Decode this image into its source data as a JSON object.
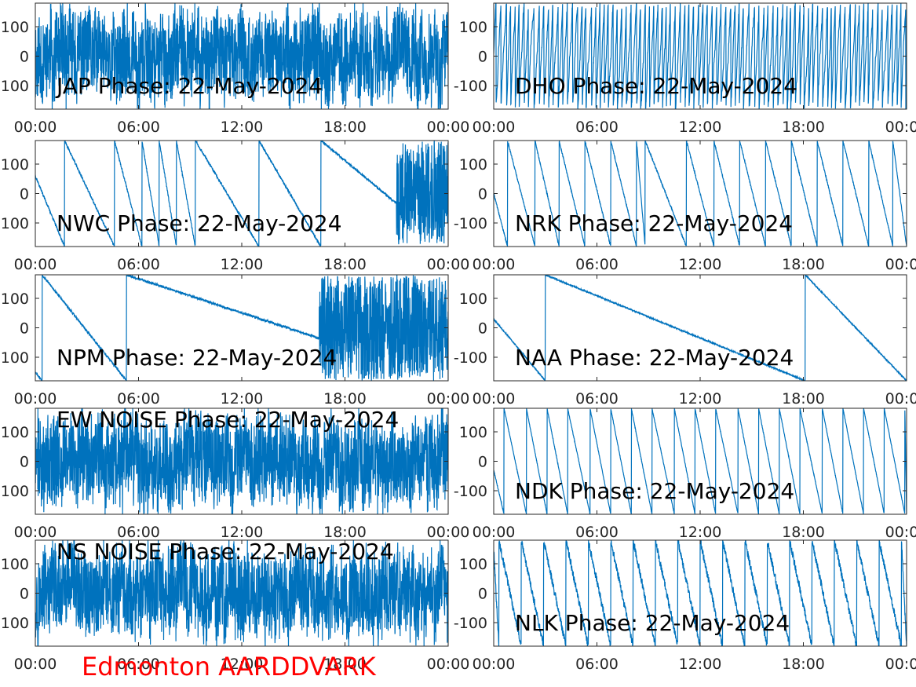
{
  "station_label": "Edmonton AARDDVARK",
  "colors": {
    "trace": "#0072bd",
    "axes": "#262626",
    "station": "#ff0000"
  },
  "chart_data": [
    {
      "type": "line",
      "title": "JAP Phase: 22-May-2024",
      "kind": "noise",
      "amp": 170,
      "seed": 11,
      "ylim": [
        -180,
        180
      ],
      "yticks": [
        "100",
        "0",
        "-100"
      ],
      "xticks": [
        "00:00",
        "06:00",
        "12:00",
        "18:00",
        "00:00"
      ],
      "xlim_hours": [
        0,
        24
      ]
    },
    {
      "type": "line",
      "title": "DHO Phase: 22-May-2024",
      "kind": "dense_wrap",
      "cycles": 90,
      "seed": 23,
      "ylim": [
        -180,
        180
      ],
      "yticks": [
        "100",
        "0",
        "-100"
      ],
      "xticks": [
        "00:00",
        "06:00",
        "12:00",
        "18:00",
        "00:00"
      ],
      "xlim_hours": [
        0,
        24
      ]
    },
    {
      "type": "line",
      "title": "NWC Phase: 22-May-2024",
      "kind": "wraps",
      "start": 60,
      "wraps_at_hours": [
        1.7,
        4.6,
        6.2,
        7.2,
        8.2,
        9.3,
        13.0,
        16.6
      ],
      "jitter": 4,
      "noisy_from_hours": 21.0,
      "seed": 37,
      "ylim": [
        -180,
        180
      ],
      "yticks": [
        "100",
        "0",
        "-100"
      ],
      "xticks": [
        "00:00",
        "06:00",
        "12:00",
        "18:00",
        "00:00"
      ],
      "xlim_hours": [
        0,
        24
      ]
    },
    {
      "type": "line",
      "title": "NRK Phase: 22-May-2024",
      "kind": "wraps",
      "start": 0,
      "wraps_at_hours": [
        0.8,
        2.4,
        3.8,
        5.3,
        6.8,
        8.3,
        8.8,
        11.2,
        12.8,
        14.3,
        15.8,
        17.3,
        18.8,
        20.3,
        21.8,
        23.2
      ],
      "jitter": 3,
      "seed": 41,
      "ylim": [
        -180,
        180
      ],
      "yticks": [
        "100",
        "0",
        "-100"
      ],
      "xticks": [
        "00:00",
        "06:00",
        "12:00",
        "18:00",
        "00:00"
      ],
      "xlim_hours": [
        0,
        24
      ]
    },
    {
      "type": "line",
      "title": "NPM Phase: 22-May-2024",
      "kind": "wraps",
      "start": -150,
      "wraps_at_hours": [
        0.4,
        5.3
      ],
      "jitter": 4,
      "noisy_from_hours": 16.5,
      "seed": 53,
      "ylim": [
        -180,
        180
      ],
      "yticks": [
        "100",
        "0",
        "-100"
      ],
      "xticks": [
        "00:00",
        "06:00",
        "12:00",
        "18:00",
        "00:00"
      ],
      "xlim_hours": [
        0,
        24
      ]
    },
    {
      "type": "line",
      "title": "NAA Phase: 22-May-2024",
      "kind": "wraps",
      "start": 30,
      "wraps_at_hours": [
        3.0,
        18.1
      ],
      "jitter": 2,
      "seed": 67,
      "ylim": [
        -180,
        180
      ],
      "yticks": [
        "100",
        "0",
        "-100"
      ],
      "xticks": [
        "00:00",
        "06:00",
        "12:00",
        "18:00",
        "00:00"
      ],
      "xlim_hours": [
        0,
        24
      ]
    },
    {
      "type": "line",
      "title": "EW NOISE Phase: 22-May-2024",
      "kind": "noise",
      "amp": 175,
      "seed": 71,
      "ylim": [
        -180,
        180
      ],
      "yticks": [
        "100",
        "0",
        "-100"
      ],
      "xticks": [
        "00:00",
        "06:00",
        "12:00",
        "18:00",
        "00:00"
      ],
      "xlim_hours": [
        0,
        24
      ]
    },
    {
      "type": "line",
      "title": "NDK Phase: 22-May-2024",
      "kind": "wraps",
      "start": -30,
      "wraps_at_hours": [
        0.6,
        1.9,
        3.1,
        4.3,
        5.6,
        6.8,
        8.0,
        9.2,
        10.5,
        11.7,
        12.9,
        14.2,
        15.4,
        16.6,
        17.8,
        19.1,
        20.3,
        21.5,
        22.7,
        23.9
      ],
      "jitter": 2,
      "seed": 83,
      "ylim": [
        -180,
        180
      ],
      "yticks": [
        "100",
        "0",
        "-100"
      ],
      "xticks": [
        "00:00",
        "06:00",
        "12:00",
        "18:00",
        "00:00"
      ],
      "xlim_hours": [
        0,
        24
      ]
    },
    {
      "type": "line",
      "title": "NS NOISE Phase: 22-May-2024",
      "kind": "noise",
      "amp": 170,
      "seed": 97,
      "ylim": [
        -180,
        180
      ],
      "yticks": [
        "100",
        "0",
        "-100"
      ],
      "xticks": [
        "00:00",
        "06:00",
        "12:00",
        "18:00",
        "00:00"
      ],
      "xlim_hours": [
        0,
        24
      ]
    },
    {
      "type": "line",
      "title": "NLK Phase: 22-May-2024",
      "kind": "wraps",
      "start": 150,
      "wraps_at_hours": [
        0.3,
        1.6,
        2.9,
        4.2,
        5.5,
        6.8,
        8.1,
        9.4,
        10.7,
        12.0,
        13.3,
        14.6,
        15.9,
        17.2,
        18.5,
        19.8,
        21.1,
        22.4,
        23.7
      ],
      "jitter": 14,
      "seed": 101,
      "ylim": [
        -180,
        180
      ],
      "yticks": [
        "100",
        "0",
        "-100"
      ],
      "xticks": [
        "00:00",
        "06:00",
        "12:00",
        "18:00",
        "00:00"
      ],
      "xlim_hours": [
        0,
        24
      ]
    }
  ]
}
